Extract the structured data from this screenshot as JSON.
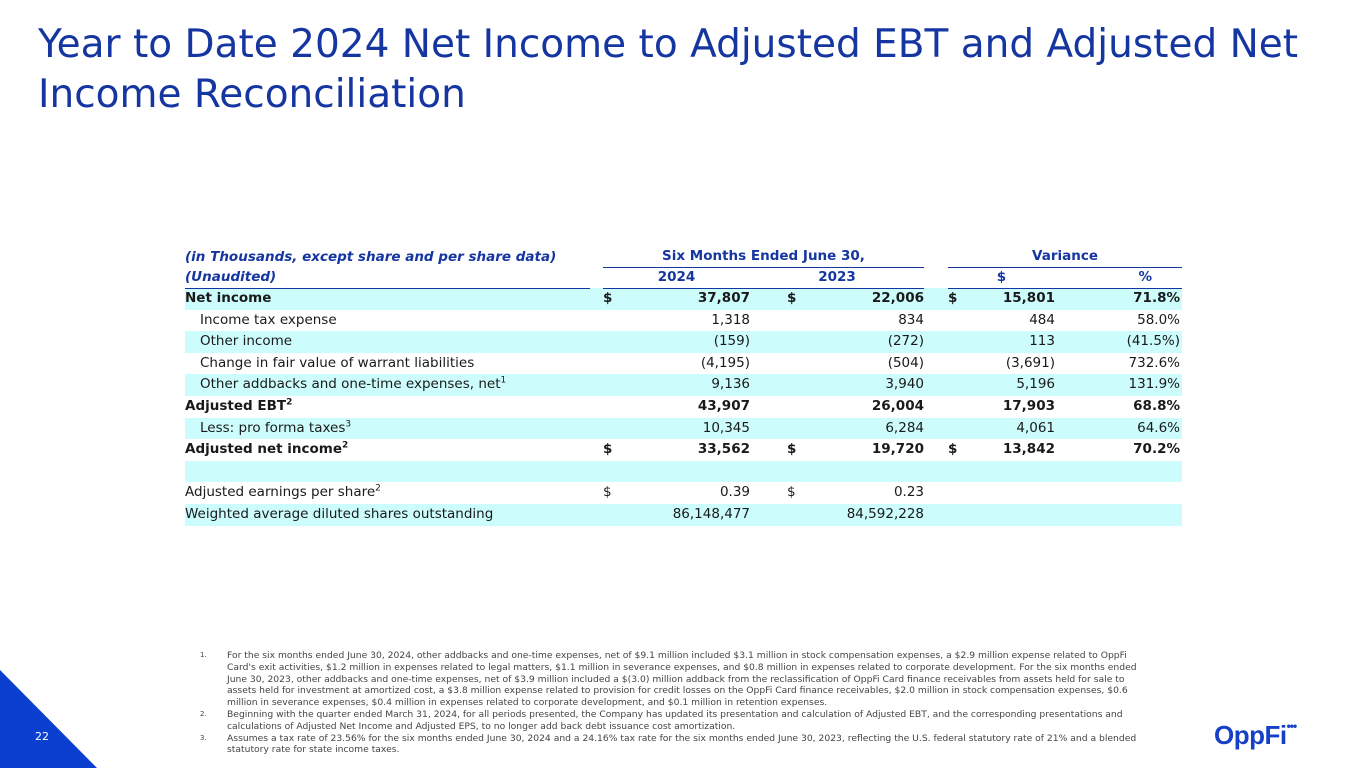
{
  "title": "Year to Date 2024 Net Income to Adjusted EBT and Adjusted Net Income Reconciliation",
  "table": {
    "header1": {
      "label": "(in Thousands, except share and per share data)",
      "period": "Six Months Ended June 30,",
      "variance": "Variance"
    },
    "header2": {
      "label": "(Unaudited)",
      "y2024": "2024",
      "y2023": "2023",
      "var_dollar": "$",
      "var_pct": "%"
    },
    "rows": [
      {
        "label": "Net income",
        "s1": "$",
        "v2024": "37,807",
        "s2": "$",
        "v2023": "22,006",
        "s3": "$",
        "var": "15,801",
        "pct": "71.8%"
      },
      {
        "label": "Income tax expense",
        "v2024": "1,318",
        "v2023": "834",
        "var": "484",
        "pct": "58.0%"
      },
      {
        "label": "Other income",
        "v2024": "(159)",
        "v2023": "(272)",
        "var": "113",
        "pct": "(41.5%)"
      },
      {
        "label": "Change in fair value of warrant liabilities",
        "v2024": "(4,195)",
        "v2023": "(504)",
        "var": "(3,691)",
        "pct": "732.6%"
      },
      {
        "label": "Other addbacks and one-time expenses, net",
        "sup": "1",
        "v2024": "9,136",
        "v2023": "3,940",
        "var": "5,196",
        "pct": "131.9%"
      },
      {
        "label": "Adjusted EBT",
        "sup": "2",
        "v2024": "43,907",
        "v2023": "26,004",
        "var": "17,903",
        "pct": "68.8%"
      },
      {
        "label": "Less: pro forma taxes",
        "sup": "3",
        "v2024": "10,345",
        "v2023": "6,284",
        "var": "4,061",
        "pct": "64.6%"
      },
      {
        "label": "Adjusted net income",
        "sup": "2",
        "s1": "$",
        "v2024": "33,562",
        "s2": "$",
        "v2023": "19,720",
        "s3": "$",
        "var": "13,842",
        "pct": "70.2%"
      },
      {
        "label": "Adjusted earnings per share",
        "sup": "2",
        "s1": "$",
        "v2024": "0.39",
        "s2": "$",
        "v2023": "0.23"
      },
      {
        "label": "Weighted average diluted shares outstanding",
        "v2024": "86,148,477",
        "v2023": "84,592,228"
      }
    ]
  },
  "footnotes": [
    {
      "num": "1.",
      "text": "For the six months ended June 30, 2024, other addbacks and one-time expenses, net of $9.1 million included $3.1 million in stock compensation expenses, a $2.9 million expense related to OppFi Card's exit activities, $1.2 million in expenses related to legal matters, $1.1 million in severance expenses, and $0.8 million in expenses related to corporate development. For the six months ended June 30, 2023, other addbacks and one-time expenses, net of $3.9 million included a $(3.0) million addback from the reclassification of OppFi Card finance receivables from assets held for sale to assets held for investment at amortized cost, a $3.8 million expense related to provision for credit losses on the OppFi Card finance receivables, $2.0 million in stock compensation expenses, $0.6 million in severance expenses, $0.4 million in expenses related to corporate development, and $0.1 million in retention expenses."
    },
    {
      "num": "2.",
      "text": "Beginning with the quarter ended March 31, 2024, for all periods presented, the Company has updated its presentation and calculation of Adjusted EBT, and the corresponding presentations and calculations of Adjusted Net Income and Adjusted EPS, to no longer add back debt issuance cost amortization."
    },
    {
      "num": "3.",
      "text": "Assumes a tax rate of 23.56% for the six months ended June 30, 2024 and a 24.16% tax rate for the six months ended June 30, 2023, reflecting the U.S. federal statutory rate of 21% and a blended statutory rate for state income taxes."
    }
  ],
  "page_number": "22",
  "logo": {
    "text": "OppFi",
    "dots": "•••"
  },
  "colors": {
    "title": "#1536a0",
    "row_shade": "#ccfcfc",
    "accent": "#0a3fd0"
  }
}
